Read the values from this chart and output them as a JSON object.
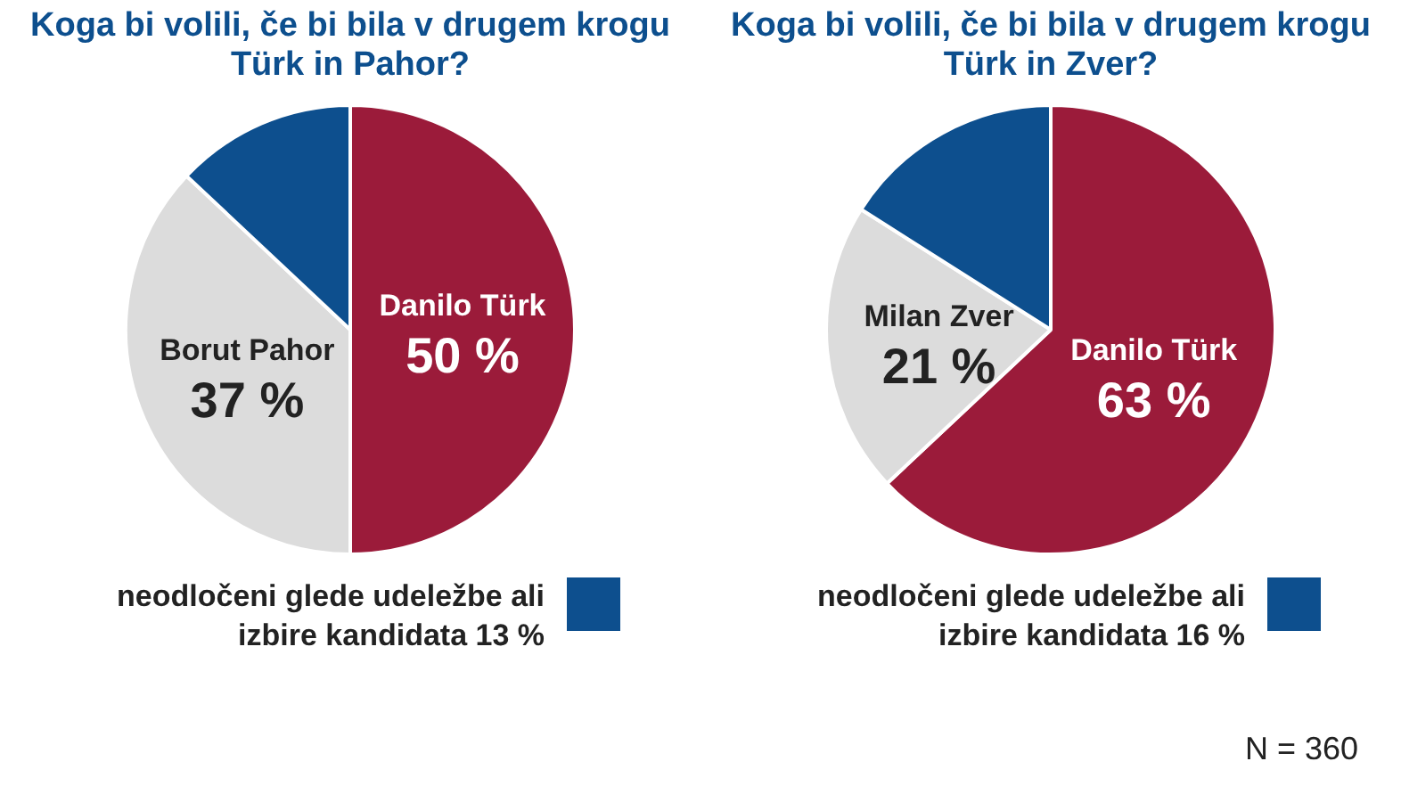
{
  "chart_data": [
    {
      "type": "pie",
      "title": "Koga bi volili, če bi bila v drugem krogu Türk in Pahor?",
      "categories": [
        "Danilo Türk",
        "Borut Pahor",
        "neodločeni glede udeležbe ali izbire kandidata"
      ],
      "values": [
        50,
        37,
        13
      ],
      "colors": [
        "#9b1b3a",
        "#dcdcdc",
        "#0d4f8e"
      ],
      "value_labels": [
        "50 %",
        "37 %",
        "13 %"
      ],
      "legend": "bottom"
    },
    {
      "type": "pie",
      "title": "Koga bi volili, če bi bila v drugem krogu Türk in Zver?",
      "categories": [
        "Danilo Türk",
        "Milan Zver",
        "neodločeni glede udeležbe ali izbire kandidata"
      ],
      "values": [
        63,
        21,
        16
      ],
      "colors": [
        "#9b1b3a",
        "#dcdcdc",
        "#0d4f8e"
      ],
      "value_labels": [
        "63 %",
        "21 %",
        "16 %"
      ],
      "legend": "bottom",
      "annotations": [
        "N = 360"
      ]
    }
  ]
}
